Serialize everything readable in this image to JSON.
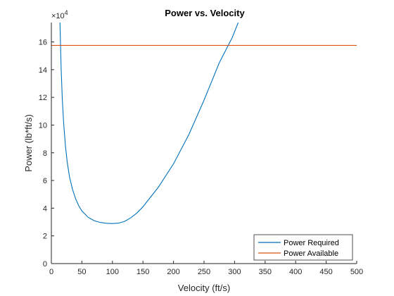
{
  "chart_data": {
    "type": "line",
    "title": "Power vs. Velocity",
    "xlabel": "Velocity (ft/s)",
    "ylabel": "Power (lb*ft/s)",
    "exponent_label": "×10",
    "exponent_power": "4",
    "xlim": [
      0,
      500
    ],
    "ylim": [
      0,
      17.4
    ],
    "y_scale_factor": 10000,
    "x_ticks": [
      0,
      50,
      100,
      150,
      200,
      250,
      300,
      350,
      400,
      450,
      500
    ],
    "y_ticks": [
      0,
      2,
      4,
      6,
      8,
      10,
      12,
      14,
      16
    ],
    "grid": false,
    "legend_position": "bottom-right",
    "series": [
      {
        "name": "Power Required",
        "color": "#0072BD",
        "x": [
          14,
          16,
          18,
          20,
          23,
          26,
          30,
          35,
          40,
          45,
          50,
          60,
          70,
          80,
          90,
          100,
          110,
          120,
          130,
          140,
          150,
          175,
          200,
          225,
          250,
          275,
          296,
          306
        ],
        "y": [
          17.4,
          14.1,
          11.8,
          10.2,
          8.5,
          7.3,
          6.2,
          5.3,
          4.65,
          4.15,
          3.8,
          3.35,
          3.1,
          2.97,
          2.91,
          2.89,
          2.92,
          3.05,
          3.3,
          3.65,
          4.1,
          5.5,
          7.2,
          9.3,
          11.8,
          14.5,
          16.3,
          17.4
        ]
      },
      {
        "name": "Power Available",
        "color": "#D95319",
        "x": [
          0,
          500
        ],
        "y": [
          15.75,
          15.75
        ]
      }
    ]
  }
}
